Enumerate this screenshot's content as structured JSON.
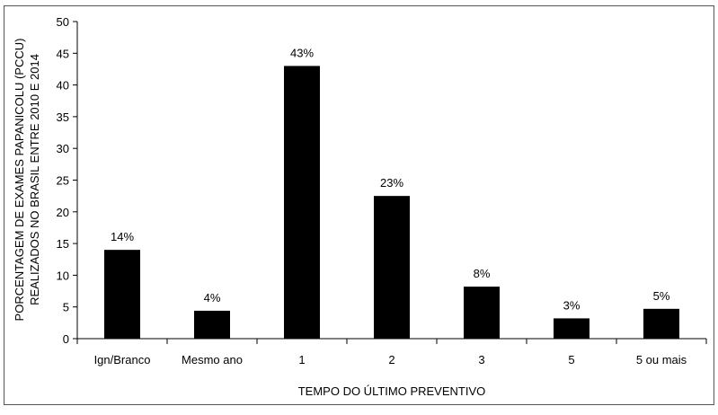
{
  "chart_data": {
    "type": "bar",
    "title": "",
    "xlabel": "TEMPO DO ÚLTIMO PREVENTIVO",
    "ylabel_lines": [
      "PORCENTAGEM DE EXAMES PAPANICOLU (PCCU)",
      "REALIZADOS NO BRASIL ENTRE 2010 E 2014"
    ],
    "categories": [
      "Ign/Branco",
      "Mesmo ano",
      "1",
      "2",
      "3",
      "5",
      "5 ou mais"
    ],
    "values": [
      14,
      4.4,
      43,
      22.5,
      8.2,
      3.2,
      4.7
    ],
    "data_labels": [
      "14%",
      "4%",
      "43%",
      "23%",
      "8%",
      "3%",
      "5%"
    ],
    "ylim": [
      0,
      50
    ],
    "yticks": [
      0,
      5,
      10,
      15,
      20,
      25,
      30,
      35,
      40,
      45,
      50
    ],
    "bar_color": "#000000",
    "grid": false,
    "legend": "none"
  }
}
